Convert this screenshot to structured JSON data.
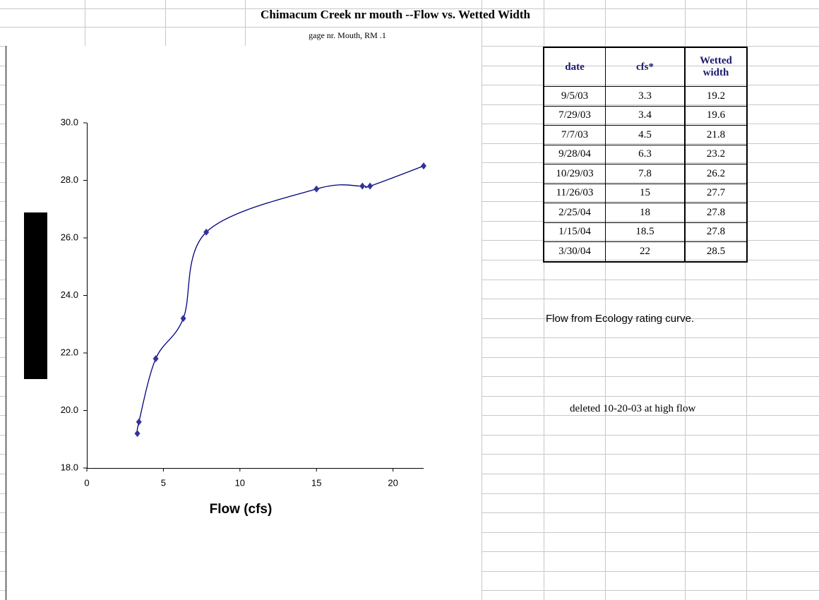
{
  "title": "Chimacum Creek nr mouth --Flow vs. Wetted Width",
  "subtitle": "gage nr. Mouth, RM .1",
  "chart_data": {
    "type": "scatter",
    "smooth": true,
    "color": "#333399",
    "line_color": "#000080",
    "x_label": "Flow (cfs)",
    "x": [
      3.3,
      3.4,
      4.5,
      6.3,
      7.8,
      15,
      18,
      18.5,
      22
    ],
    "values": [
      19.2,
      19.6,
      21.8,
      23.2,
      26.2,
      27.7,
      27.8,
      27.8,
      28.5
    ],
    "xlim": [
      0,
      22
    ],
    "xticks": [
      0,
      5,
      10,
      15,
      20
    ],
    "ylim": [
      18,
      30
    ],
    "yticks": [
      {
        "value": 18,
        "label": "18.0"
      },
      {
        "value": 20,
        "label": "20.0"
      },
      {
        "value": 22,
        "label": "22.0"
      },
      {
        "value": 24,
        "label": "24.0"
      },
      {
        "value": 26,
        "label": "26.0"
      },
      {
        "value": 28,
        "label": "28.0"
      },
      {
        "value": 30,
        "label": "30.0"
      }
    ]
  },
  "table": {
    "header": [
      "date",
      "cfs*",
      "Wetted width"
    ],
    "rows": [
      [
        "9/5/03",
        3.3,
        19.2
      ],
      [
        "7/29/03",
        3.4,
        19.6
      ],
      [
        "7/7/03",
        4.5,
        21.8
      ],
      [
        "9/28/04",
        6.3,
        23.2
      ],
      [
        "10/29/03",
        7.8,
        26.2
      ],
      [
        "11/26/03",
        15,
        27.7
      ],
      [
        "2/25/04",
        18,
        27.8
      ],
      [
        "1/15/04",
        18.5,
        27.8
      ],
      [
        "3/30/04",
        22,
        28.5
      ]
    ]
  },
  "notes": [
    "Flow from Ecology rating curve.",
    "deleted 10-20-03 at high flow"
  ]
}
